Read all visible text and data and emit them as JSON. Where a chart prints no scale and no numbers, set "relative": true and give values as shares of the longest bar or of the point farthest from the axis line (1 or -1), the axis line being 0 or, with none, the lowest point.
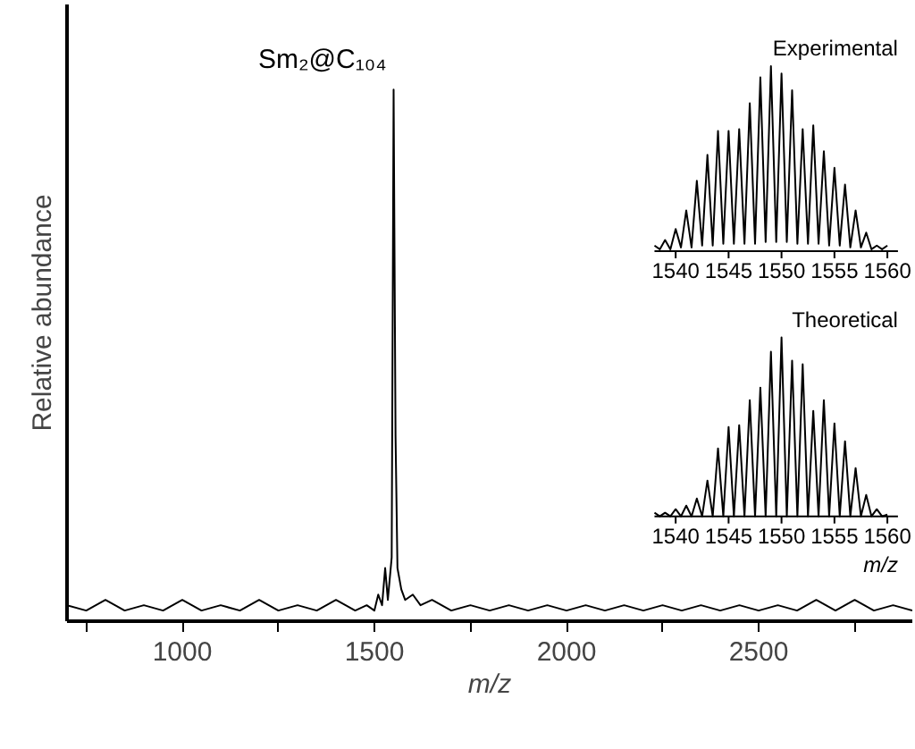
{
  "chart_data": [
    {
      "type": "line",
      "relative": true,
      "xlabel": "m/z",
      "ylabel": "Relative abundance",
      "xlim": [
        700,
        2900
      ],
      "xticks": [
        {
          "value": 750,
          "label": null
        },
        1000,
        {
          "value": 1250,
          "label": null
        },
        1500,
        {
          "value": 1750,
          "label": null
        },
        2000,
        {
          "value": 2250,
          "label": null
        },
        2500,
        {
          "value": 2750,
          "label": null
        }
      ],
      "annotations": [
        {
          "text": "Sm₂@C₁₀₄",
          "x": 1550,
          "y": 1.0
        }
      ],
      "series": [
        {
          "color": "#000000",
          "x": [
            700,
            750,
            800,
            850,
            900,
            950,
            1000,
            1050,
            1100,
            1150,
            1200,
            1250,
            1300,
            1350,
            1400,
            1450,
            1480,
            1500,
            1510,
            1520,
            1528,
            1535,
            1545,
            1550,
            1555,
            1560,
            1570,
            1580,
            1600,
            1620,
            1650,
            1700,
            1750,
            1800,
            1850,
            1900,
            1950,
            2000,
            2050,
            2100,
            2150,
            2200,
            2250,
            2300,
            2350,
            2400,
            2450,
            2500,
            2550,
            2600,
            2650,
            2700,
            2750,
            2800,
            2850,
            2900
          ],
          "values": [
            0.03,
            0.02,
            0.04,
            0.02,
            0.03,
            0.02,
            0.04,
            0.02,
            0.03,
            0.02,
            0.04,
            0.02,
            0.03,
            0.02,
            0.04,
            0.02,
            0.03,
            0.02,
            0.05,
            0.03,
            0.1,
            0.04,
            0.12,
            1.0,
            0.35,
            0.1,
            0.06,
            0.04,
            0.05,
            0.03,
            0.04,
            0.02,
            0.03,
            0.02,
            0.03,
            0.02,
            0.03,
            0.02,
            0.03,
            0.02,
            0.03,
            0.02,
            0.03,
            0.02,
            0.03,
            0.02,
            0.03,
            0.02,
            0.03,
            0.02,
            0.04,
            0.02,
            0.04,
            0.02,
            0.03,
            0.02
          ]
        }
      ]
    },
    {
      "type": "line",
      "relative": true,
      "title": "Experimental",
      "xlim": [
        1538,
        1561
      ],
      "xticks": [
        1540,
        1545,
        1550,
        1555,
        1560
      ],
      "series": [
        {
          "color": "#000000",
          "x": [
            1538,
            1538.5,
            1539,
            1539.5,
            1540,
            1540.5,
            1541,
            1541.5,
            1542,
            1542.5,
            1543,
            1543.5,
            1544,
            1544.5,
            1545,
            1545.5,
            1546,
            1546.5,
            1547,
            1547.5,
            1548,
            1548.5,
            1549,
            1549.5,
            1550,
            1550.5,
            1551,
            1551.5,
            1552,
            1552.5,
            1553,
            1553.5,
            1554,
            1554.5,
            1555,
            1555.5,
            1556,
            1556.5,
            1557,
            1557.5,
            1558,
            1558.5,
            1559,
            1559.5,
            1560
          ],
          "values": [
            0.03,
            0.01,
            0.06,
            0.01,
            0.12,
            0.02,
            0.22,
            0.02,
            0.38,
            0.03,
            0.52,
            0.03,
            0.65,
            0.04,
            0.65,
            0.04,
            0.66,
            0.04,
            0.8,
            0.04,
            0.94,
            0.05,
            1.0,
            0.05,
            0.96,
            0.05,
            0.87,
            0.04,
            0.66,
            0.04,
            0.68,
            0.04,
            0.54,
            0.03,
            0.45,
            0.03,
            0.36,
            0.02,
            0.22,
            0.02,
            0.1,
            0.01,
            0.03,
            0.01,
            0.03
          ]
        }
      ]
    },
    {
      "type": "line",
      "relative": true,
      "title": "Theoretical",
      "xlabel": "m/z",
      "xlim": [
        1538,
        1561
      ],
      "xticks": [
        1540,
        1545,
        1550,
        1555,
        1560
      ],
      "series": [
        {
          "color": "#000000",
          "x": [
            1538,
            1538.5,
            1539,
            1539.5,
            1540,
            1540.5,
            1541,
            1541.5,
            1542,
            1542.5,
            1543,
            1543.5,
            1544,
            1544.5,
            1545,
            1545.5,
            1546,
            1546.5,
            1547,
            1547.5,
            1548,
            1548.5,
            1549,
            1549.5,
            1550,
            1550.5,
            1551,
            1551.5,
            1552,
            1552.5,
            1553,
            1553.5,
            1554,
            1554.5,
            1555,
            1555.5,
            1556,
            1556.5,
            1557,
            1557.5,
            1558,
            1558.5,
            1559,
            1559.5,
            1560
          ],
          "values": [
            0.02,
            0,
            0.02,
            0,
            0.04,
            0,
            0.06,
            0,
            0.1,
            0,
            0.2,
            0,
            0.38,
            0,
            0.5,
            0,
            0.51,
            0,
            0.65,
            0,
            0.72,
            0,
            0.92,
            0,
            1.0,
            0,
            0.87,
            0,
            0.85,
            0,
            0.59,
            0,
            0.65,
            0,
            0.52,
            0,
            0.42,
            0,
            0.27,
            0,
            0.12,
            0,
            0.04,
            0,
            0.01
          ]
        }
      ]
    }
  ]
}
